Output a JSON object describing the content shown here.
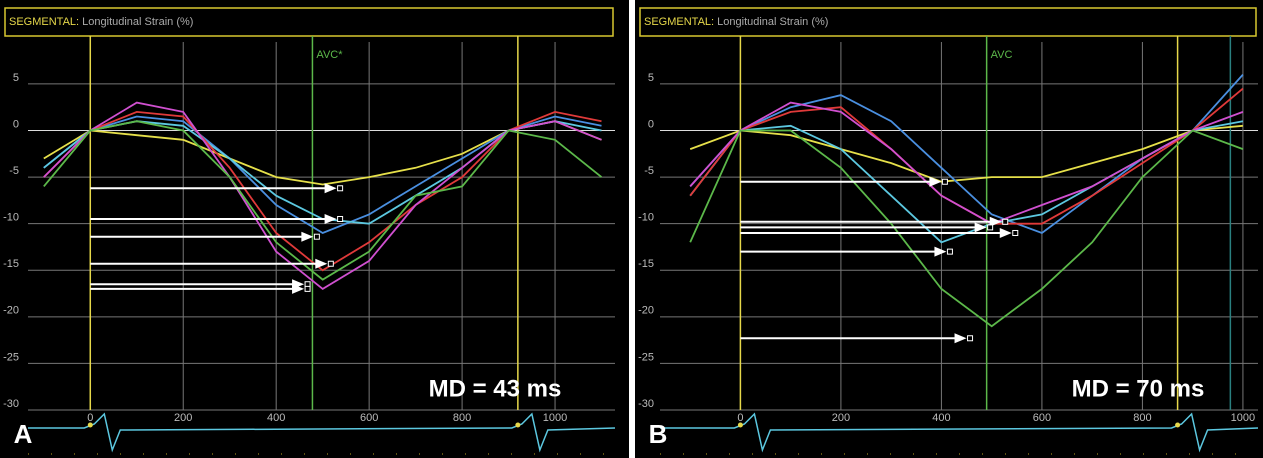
{
  "chart_data": [
    {
      "type": "line",
      "panel": "A",
      "title_label": "SEGMENTAL:",
      "title": "Longitudinal Strain (%)",
      "annotation": "MD = 43 ms",
      "x": [
        -100,
        0,
        100,
        200,
        300,
        400,
        500,
        600,
        700,
        800,
        900,
        1000,
        1100
      ],
      "xlim": [
        -134,
        1129
      ],
      "xticks": [
        0,
        200,
        400,
        600,
        800,
        1000
      ],
      "ylim": [
        -30,
        9.5
      ],
      "yticks": [
        5,
        0,
        -5,
        -10,
        -15,
        -20,
        -25,
        -30
      ],
      "grid": true,
      "series": [
        {
          "color": "#e6e04a",
          "values": [
            -3,
            0,
            -0.5,
            -1,
            -3,
            -5,
            -5.8,
            -5,
            -4,
            -2.5,
            0,
            1,
            -1
          ]
        },
        {
          "color": "#4a8fe0",
          "values": [
            -4,
            0,
            1.5,
            1,
            -3,
            -8,
            -11,
            -9,
            -6,
            -3,
            0,
            1.5,
            0.5
          ]
        },
        {
          "color": "#5cc8e0",
          "values": [
            -4,
            0,
            1,
            0.5,
            -3,
            -7,
            -9.5,
            -10,
            -7,
            -4,
            0,
            1,
            0
          ]
        },
        {
          "color": "#e03a3a",
          "values": [
            -5,
            0,
            2,
            1.5,
            -4,
            -11,
            -15,
            -12,
            -8,
            -5,
            0,
            2,
            1
          ]
        },
        {
          "color": "#d050d0",
          "values": [
            -5,
            0,
            3,
            2,
            -5,
            -13,
            -17,
            -14,
            -8,
            -4,
            0,
            1,
            -1
          ]
        },
        {
          "color": "#5cb84a",
          "values": [
            -6,
            0,
            1,
            0,
            -5,
            -12,
            -16,
            -13,
            -7,
            -6,
            0,
            -1,
            -5
          ]
        }
      ],
      "arrows": [
        {
          "y": -6.2,
          "x_end": 530
        },
        {
          "y": -9.5,
          "x_end": 530
        },
        {
          "y": -11.4,
          "x_end": 480
        },
        {
          "y": -14.3,
          "x_end": 510
        },
        {
          "y": -16.5,
          "x_end": 460
        },
        {
          "y": -17,
          "x_end": 460
        }
      ],
      "markers": [
        {
          "x": 0,
          "color": "#e6d84a"
        },
        {
          "x": 478,
          "color": "#5cb84a",
          "label": "AVC*"
        },
        {
          "x": 920,
          "color": "#e6d84a"
        }
      ]
    },
    {
      "type": "line",
      "panel": "B",
      "title_label": "SEGMENTAL:",
      "title": "Longitudinal Strain (%)",
      "annotation": "MD = 70 ms",
      "x": [
        -100,
        0,
        100,
        200,
        300,
        400,
        500,
        600,
        700,
        800,
        900,
        1000
      ],
      "xlim": [
        -160,
        1030
      ],
      "xticks": [
        0,
        200,
        400,
        600,
        800,
        1000
      ],
      "ylim": [
        -30,
        9.5
      ],
      "yticks": [
        5,
        0,
        -5,
        -10,
        -15,
        -20,
        -25,
        -30
      ],
      "grid": true,
      "series": [
        {
          "color": "#e6e04a",
          "values": [
            -2,
            0,
            -0.5,
            -2,
            -3.5,
            -5.5,
            -5,
            -5,
            -3.5,
            -2,
            0,
            0.5
          ]
        },
        {
          "color": "#4a8fe0",
          "values": [
            -6,
            0,
            2.5,
            3.8,
            1,
            -4,
            -9,
            -11,
            -7,
            -3,
            0,
            6
          ]
        },
        {
          "color": "#5cc8e0",
          "values": [
            -7,
            0,
            0.5,
            -2,
            -7,
            -12,
            -10,
            -9,
            -6,
            -3,
            0,
            1
          ]
        },
        {
          "color": "#e03a3a",
          "values": [
            -7,
            0,
            2,
            2.5,
            -2,
            -7,
            -10,
            -10,
            -7,
            -3.5,
            0,
            4.5
          ]
        },
        {
          "color": "#d050d0",
          "values": [
            -6,
            0,
            3,
            2,
            -2,
            -7,
            -10,
            -8,
            -6,
            -3,
            0,
            2
          ]
        },
        {
          "color": "#5cb84a",
          "values": [
            -12,
            0,
            0,
            -4,
            -10,
            -17,
            -21,
            -17,
            -12,
            -5,
            0,
            -2
          ]
        }
      ],
      "arrows": [
        {
          "y": -5.5,
          "x_end": 400
        },
        {
          "y": -9.8,
          "x_end": 520
        },
        {
          "y": -10.4,
          "x_end": 490
        },
        {
          "y": -11,
          "x_end": 540
        },
        {
          "y": -13,
          "x_end": 410
        },
        {
          "y": -22.3,
          "x_end": 450
        }
      ],
      "markers": [
        {
          "x": 0,
          "color": "#e6d84a"
        },
        {
          "x": 490,
          "color": "#5cb84a",
          "label": "AVC"
        },
        {
          "x": 870,
          "color": "#e6d84a"
        },
        {
          "x": 975,
          "color": "#2a8080"
        }
      ]
    }
  ]
}
